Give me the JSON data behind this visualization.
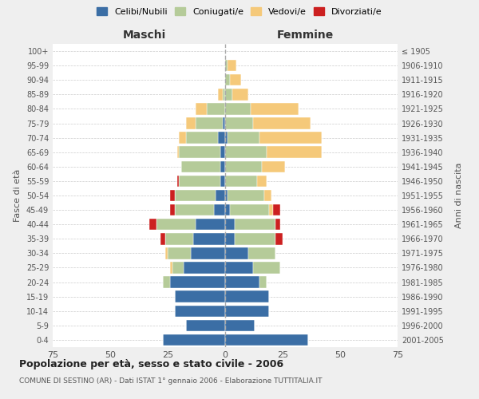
{
  "age_groups": [
    "0-4",
    "5-9",
    "10-14",
    "15-19",
    "20-24",
    "25-29",
    "30-34",
    "35-39",
    "40-44",
    "45-49",
    "50-54",
    "55-59",
    "60-64",
    "65-69",
    "70-74",
    "75-79",
    "80-84",
    "85-89",
    "90-94",
    "95-99",
    "100+"
  ],
  "birth_years": [
    "2001-2005",
    "1996-2000",
    "1991-1995",
    "1986-1990",
    "1981-1985",
    "1976-1980",
    "1971-1975",
    "1966-1970",
    "1961-1965",
    "1956-1960",
    "1951-1955",
    "1946-1950",
    "1941-1945",
    "1936-1940",
    "1931-1935",
    "1926-1930",
    "1921-1925",
    "1916-1920",
    "1911-1915",
    "1906-1910",
    "≤ 1905"
  ],
  "maschi": {
    "celibi": [
      27,
      17,
      22,
      22,
      24,
      18,
      15,
      14,
      13,
      5,
      4,
      2,
      2,
      2,
      3,
      1,
      0,
      0,
      0,
      0,
      0
    ],
    "coniugati": [
      0,
      0,
      0,
      0,
      3,
      5,
      10,
      12,
      17,
      17,
      18,
      18,
      17,
      18,
      14,
      12,
      8,
      1,
      0,
      0,
      0
    ],
    "vedovi": [
      0,
      0,
      0,
      0,
      0,
      1,
      1,
      0,
      0,
      0,
      0,
      0,
      0,
      1,
      3,
      4,
      5,
      2,
      0,
      0,
      0
    ],
    "divorziati": [
      0,
      0,
      0,
      0,
      0,
      0,
      0,
      2,
      3,
      2,
      2,
      1,
      0,
      0,
      0,
      0,
      0,
      0,
      0,
      0,
      0
    ]
  },
  "femmine": {
    "nubili": [
      36,
      13,
      19,
      19,
      15,
      12,
      10,
      4,
      4,
      2,
      1,
      0,
      0,
      0,
      1,
      0,
      0,
      0,
      0,
      0,
      0
    ],
    "coniugate": [
      0,
      0,
      0,
      0,
      3,
      12,
      12,
      18,
      18,
      17,
      16,
      14,
      16,
      18,
      14,
      12,
      11,
      3,
      2,
      1,
      0
    ],
    "vedove": [
      0,
      0,
      0,
      0,
      0,
      0,
      0,
      0,
      0,
      2,
      3,
      4,
      10,
      24,
      27,
      25,
      21,
      7,
      5,
      4,
      0
    ],
    "divorziate": [
      0,
      0,
      0,
      0,
      0,
      0,
      0,
      3,
      2,
      3,
      0,
      0,
      0,
      0,
      0,
      0,
      0,
      0,
      0,
      0,
      0
    ]
  },
  "colors": {
    "celibi": "#3b6ea5",
    "coniugati": "#b5cb99",
    "vedovi": "#f5c97a",
    "divorziati": "#cc2020"
  },
  "xlim": 75,
  "title": "Popolazione per età, sesso e stato civile - 2006",
  "subtitle": "COMUNE DI SESTINO (AR) - Dati ISTAT 1° gennaio 2006 - Elaborazione TUTTITALIA.IT",
  "ylabel_left": "Fasce di età",
  "ylabel_right": "Anni di nascita",
  "xlabel_maschi": "Maschi",
  "xlabel_femmine": "Femmine",
  "legend_labels": [
    "Celibi/Nubili",
    "Coniugati/e",
    "Vedovi/e",
    "Divorziati/e"
  ],
  "background_color": "#efefef",
  "plot_bg": "#ffffff"
}
